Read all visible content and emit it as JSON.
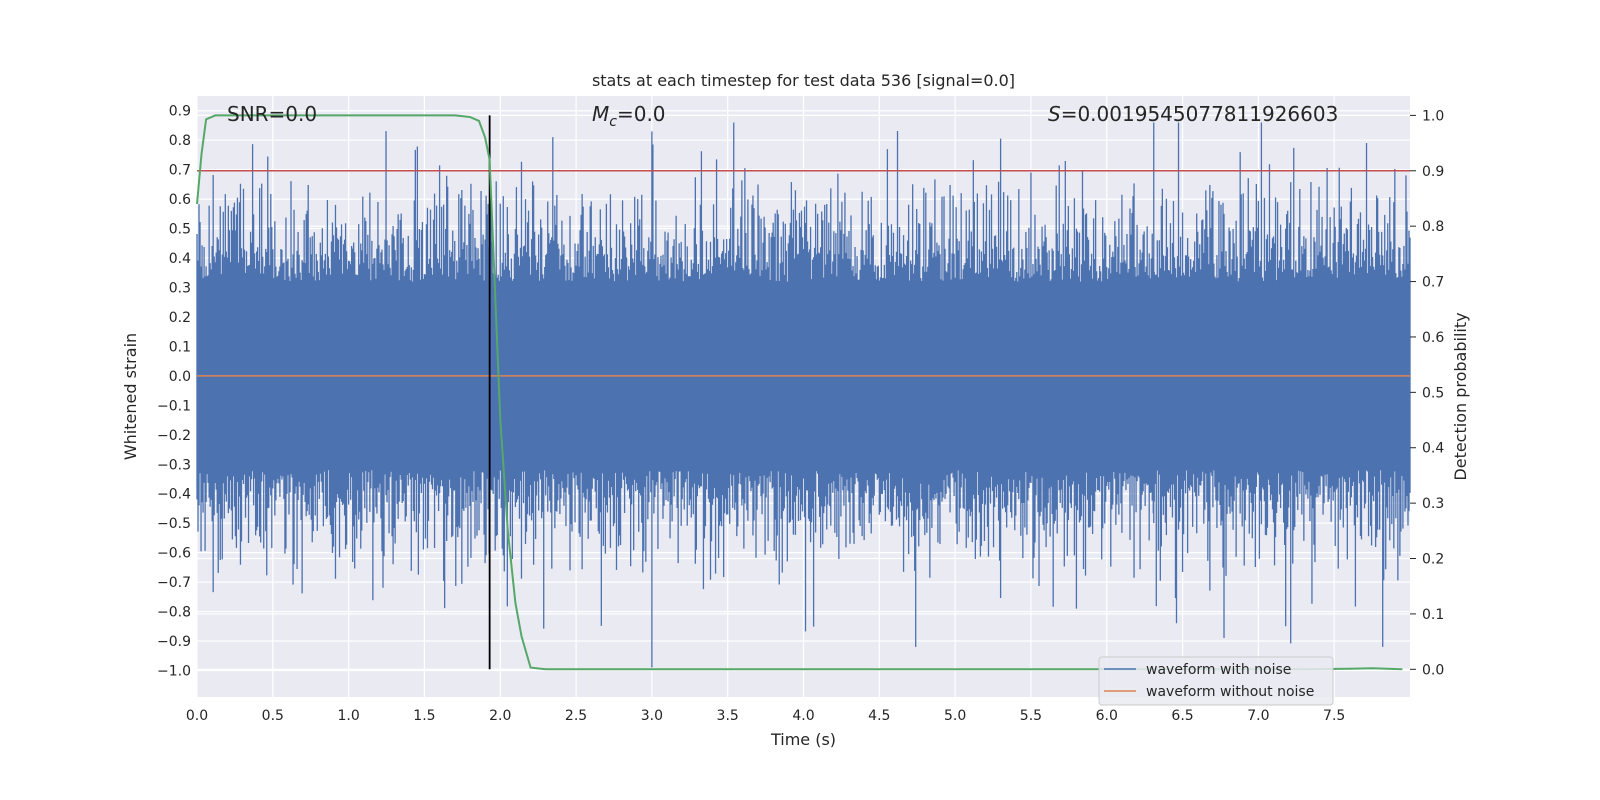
{
  "chart_data": {
    "type": "line",
    "title": "stats at each timestep for test data 536 [signal=0.0]",
    "xlabel": "Time (s)",
    "ylabel": "Whitened strain",
    "y2label": "Detection probability",
    "xlim": [
      0.0,
      8.0
    ],
    "ylim": [
      -1.09,
      0.95
    ],
    "y2lim": [
      -0.05,
      1.035
    ],
    "x_ticks": [
      "0.0",
      "0.5",
      "1.0",
      "1.5",
      "2.0",
      "2.5",
      "3.0",
      "3.5",
      "4.0",
      "4.5",
      "5.0",
      "5.5",
      "6.0",
      "6.5",
      "7.0",
      "7.5"
    ],
    "y_ticks": [
      "0.9",
      "0.8",
      "0.7",
      "0.6",
      "0.5",
      "0.4",
      "0.3",
      "0.2",
      "0.1",
      "0.0",
      "−0.1",
      "−0.2",
      "−0.3",
      "−0.4",
      "−0.5",
      "−0.6",
      "−0.7",
      "−0.8",
      "−0.9",
      "−1.0"
    ],
    "y2_ticks": [
      "1.0",
      "0.9",
      "0.8",
      "0.7",
      "0.6",
      "0.5",
      "0.4",
      "0.3",
      "0.2",
      "0.1",
      "0.0"
    ],
    "annotations": {
      "snr": "SNR=0.0",
      "mc_symbol": "M",
      "mc_sub": "c",
      "mc_value": "=0.0",
      "s_symbol": "S",
      "s_value": "=0.001954507781192660 3"
    },
    "threshold": {
      "value": 0.9,
      "axis": "right",
      "color": "#c44e52"
    },
    "event_marker": {
      "x": 1.93,
      "color": "#000000"
    },
    "series": [
      {
        "name": "waveform with noise",
        "color": "#4c72b0",
        "axis": "left",
        "description": "noisy whitened strain, amplitude approx ±0.5 with spikes to ~0.87 and -0.99"
      },
      {
        "name": "waveform without noise",
        "color": "#dd8452",
        "axis": "left",
        "x": [
          0.0,
          8.0
        ],
        "values": [
          0.0,
          0.0
        ]
      },
      {
        "name": "detection probability",
        "color": "#55a868",
        "axis": "right",
        "x": [
          0.0,
          0.03,
          0.06,
          0.12,
          0.2,
          0.5,
          1.0,
          1.5,
          1.7,
          1.8,
          1.86,
          1.9,
          1.93,
          1.96,
          2.0,
          2.05,
          2.1,
          2.14,
          2.2,
          2.3,
          3.0,
          4.0,
          5.0,
          6.0,
          7.0,
          7.3,
          7.6,
          7.75,
          7.95
        ],
        "values": [
          0.84,
          0.93,
          0.993,
          1.0,
          1.0,
          1.0,
          1.0,
          1.0,
          1.0,
          0.997,
          0.99,
          0.96,
          0.92,
          0.72,
          0.45,
          0.25,
          0.12,
          0.06,
          0.003,
          0.0,
          0.0,
          0.0,
          0.0,
          0.0,
          0.0,
          0.0,
          0.001,
          0.002,
          0.0
        ]
      }
    ],
    "legend": {
      "position": "lower-right",
      "entries": [
        "waveform with noise",
        "waveform without noise"
      ]
    }
  }
}
